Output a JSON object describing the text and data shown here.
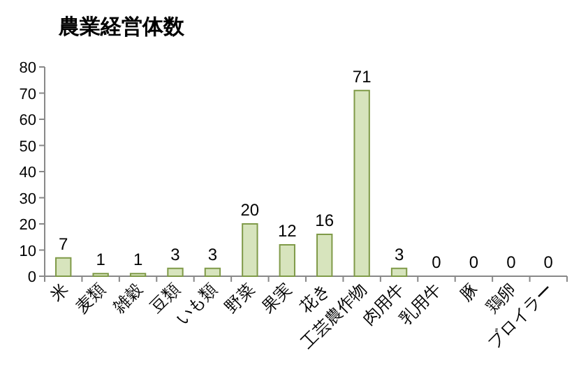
{
  "chart_data": {
    "type": "bar",
    "title": "農業経営体数",
    "categories": [
      "米",
      "麦類",
      "雑穀",
      "豆類",
      "いも類",
      "野菜",
      "果実",
      "花き",
      "工芸農作物",
      "肉用牛",
      "乳用牛",
      "豚",
      "鶏卵",
      "ブロイラー"
    ],
    "values": [
      7,
      1,
      1,
      3,
      3,
      20,
      12,
      16,
      71,
      3,
      0,
      0,
      0,
      0
    ],
    "color": "#d7e4bd",
    "ylim": [
      0,
      80
    ],
    "yticks": [
      0,
      10,
      20,
      30,
      40,
      50,
      60,
      70,
      80
    ],
    "data_labels": true,
    "grid": false
  }
}
